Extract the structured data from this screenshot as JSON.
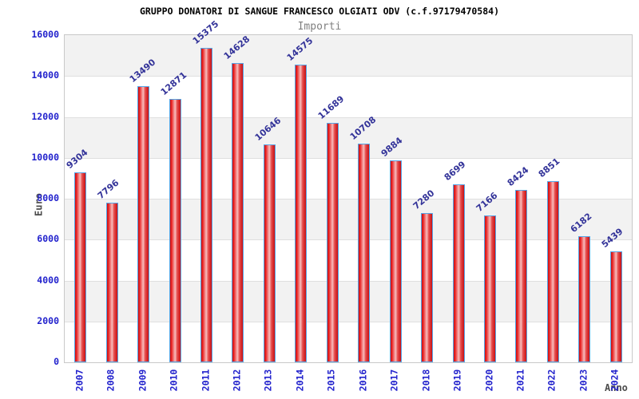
{
  "chart_data": {
    "type": "bar",
    "title": "GRUPPO DONATORI DI SANGUE FRANCESCO OLGIATI ODV (c.f.97179470584)",
    "subtitle": "Importi",
    "xlabel": "Anno",
    "ylabel": "Euro",
    "categories": [
      "2007",
      "2008",
      "2009",
      "2010",
      "2011",
      "2012",
      "2013",
      "2014",
      "2015",
      "2016",
      "2017",
      "2018",
      "2019",
      "2020",
      "2021",
      "2022",
      "2023",
      "2024"
    ],
    "values": [
      9304,
      7796,
      13490,
      12871,
      15375,
      14628,
      10646,
      14575,
      11689,
      10708,
      9884,
      7280,
      8699,
      7166,
      8424,
      8851,
      6182,
      5439
    ],
    "ylim": [
      0,
      16000
    ],
    "ytick_step": 2000,
    "yticks": [
      0,
      2000,
      4000,
      6000,
      8000,
      10000,
      12000,
      14000,
      16000
    ],
    "grid": "horizontal-bands-alternating",
    "legend": "none",
    "colors": {
      "title_color": "#000000",
      "subtitle_color": "#808080",
      "tick_label": "#2323cd",
      "value_label": "#333399",
      "axis_title": "#4d4d4d",
      "bar_edge": "#c81113",
      "bar_center": "#f7bcbc",
      "bar_border": "#55a5e6",
      "band_gray": "#f2f2f2",
      "band_white": "#ffffff",
      "grid_line": "#dfdfdf",
      "plot_border": "#c9c9c9",
      "background": "#ffffff"
    }
  }
}
